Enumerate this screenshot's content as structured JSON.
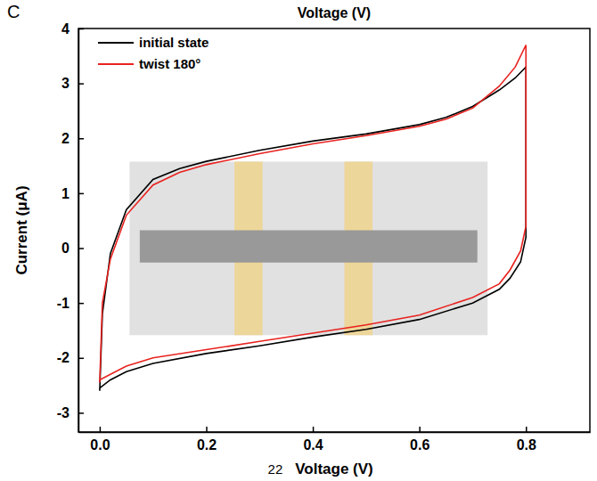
{
  "chart_data": {
    "type": "line",
    "panel_label": "C",
    "title": "Voltage (V)",
    "x_label": "Voltage (V)",
    "y_label": "Current (μA)",
    "annotations": [
      "22"
    ],
    "x": [
      0.0,
      0.005,
      0.02,
      0.05,
      0.1,
      0.15,
      0.2,
      0.3,
      0.4,
      0.5,
      0.6,
      0.65,
      0.7,
      0.75,
      0.78,
      0.8,
      0.8,
      0.79,
      0.77,
      0.75,
      0.7,
      0.6,
      0.5,
      0.4,
      0.3,
      0.2,
      0.1,
      0.05,
      0.02,
      0.0,
      0.0
    ],
    "series": [
      {
        "name": "initial state",
        "color": "#000000",
        "values": [
          -2.6,
          -1.2,
          -0.1,
          0.7,
          1.25,
          1.45,
          1.58,
          1.78,
          1.95,
          2.08,
          2.25,
          2.38,
          2.58,
          2.88,
          3.1,
          3.3,
          0.2,
          -0.25,
          -0.55,
          -0.75,
          -1.0,
          -1.3,
          -1.48,
          -1.62,
          -1.78,
          -1.92,
          -2.1,
          -2.25,
          -2.4,
          -2.55,
          -2.6
        ]
      },
      {
        "name": "twist 180°",
        "color": "#e8221f",
        "values": [
          -2.45,
          -1.0,
          -0.2,
          0.6,
          1.15,
          1.38,
          1.52,
          1.72,
          1.9,
          2.05,
          2.22,
          2.35,
          2.55,
          2.95,
          3.3,
          3.7,
          0.4,
          -0.05,
          -0.4,
          -0.65,
          -0.9,
          -1.22,
          -1.4,
          -1.55,
          -1.7,
          -1.85,
          -2.0,
          -2.15,
          -2.3,
          -2.4,
          -2.45
        ]
      }
    ],
    "xlim": [
      -0.04,
      0.92
    ],
    "xticks": [
      {
        "value": 0,
        "label": "0.0"
      },
      {
        "value": 0.2,
        "label": "0.2"
      },
      {
        "value": 0.4,
        "label": "0.4"
      },
      {
        "value": 0.6,
        "label": "0.6"
      },
      {
        "value": 0.8,
        "label": "0.8"
      }
    ],
    "ylim": [
      -3.35,
      4
    ],
    "yticks": [
      -3,
      -2,
      -1,
      0,
      1,
      2,
      3,
      4
    ],
    "legend": "upper left",
    "grid": false
  }
}
